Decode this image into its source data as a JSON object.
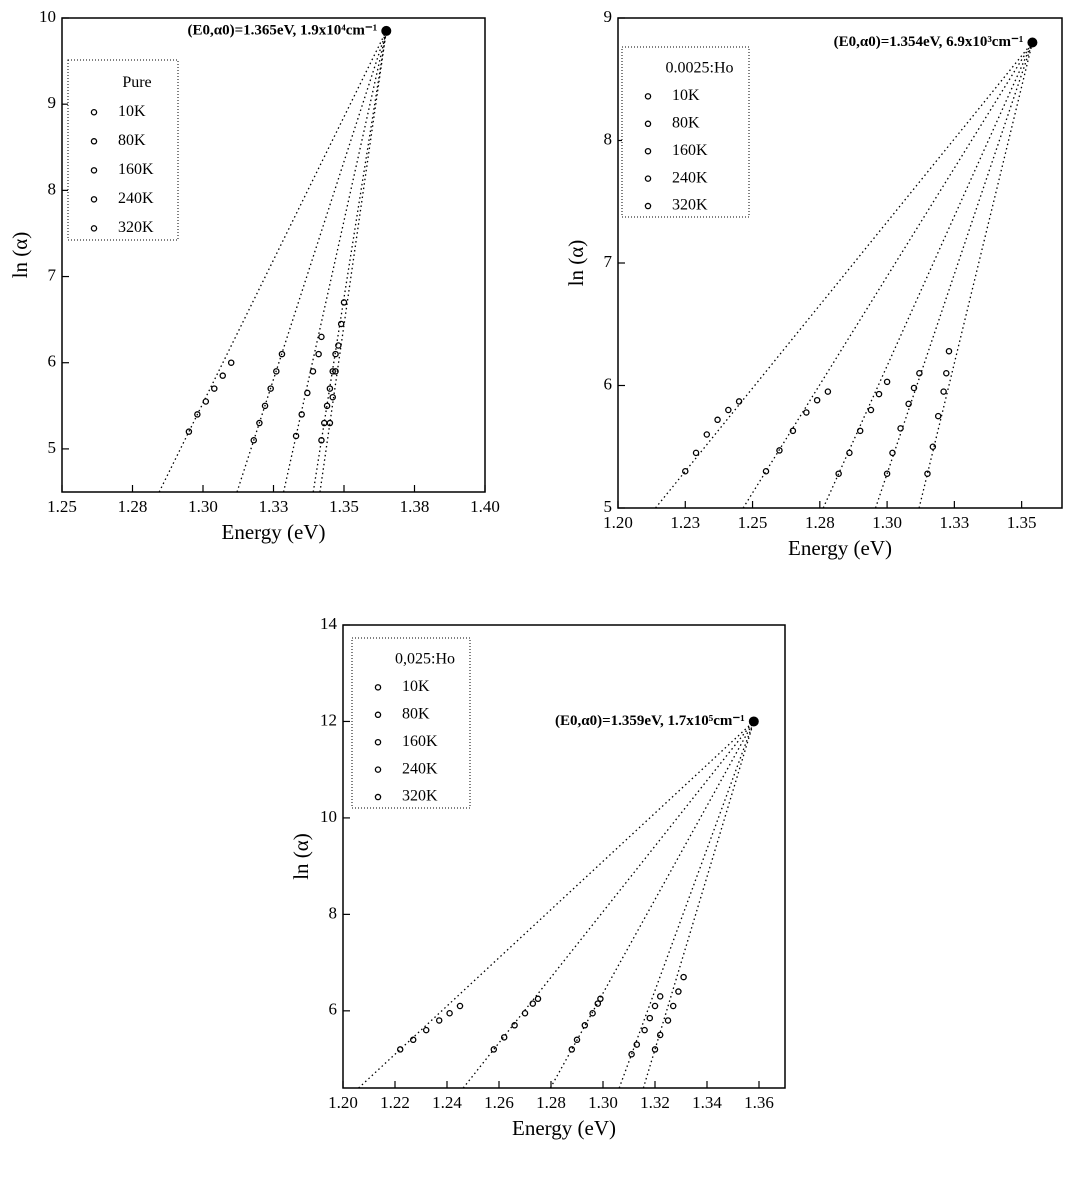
{
  "chart_data": [
    {
      "type": "scatter",
      "xlabel": "Energy (eV)",
      "ylabel": "ln (α)",
      "legend_title": "Pure",
      "legend": "upper left",
      "annotation": {
        "text": "(E0,α0)=1.365eV, 1.9x10⁴cm⁻¹",
        "x": 1.365,
        "y": 9.85
      },
      "xlim": [
        1.25,
        1.4
      ],
      "xticks": [
        1.25,
        {
          "value": 1.275,
          "label": "1.28"
        },
        {
          "value": 1.3,
          "label": "1.30"
        },
        {
          "value": 1.325,
          "label": "1.33"
        },
        1.35,
        {
          "value": 1.375,
          "label": "1.38"
        },
        {
          "value": 1.4,
          "label": "1.40"
        }
      ],
      "ylim": [
        4.5,
        10
      ],
      "yticks": [
        5,
        6,
        7,
        8,
        9,
        10
      ],
      "series": [
        {
          "name": "10K",
          "color": "#000000",
          "x": [
            1.295,
            1.298,
            1.301,
            1.304,
            1.307,
            1.31
          ],
          "values": [
            5.2,
            5.4,
            5.55,
            5.7,
            5.85,
            6.0
          ]
        },
        {
          "name": "80K",
          "color": "#000000",
          "x": [
            1.318,
            1.32,
            1.322,
            1.324,
            1.326,
            1.328
          ],
          "values": [
            5.1,
            5.3,
            5.5,
            5.7,
            5.9,
            6.1
          ]
        },
        {
          "name": "160K",
          "color": "#000000",
          "x": [
            1.333,
            1.335,
            1.337,
            1.339,
            1.341,
            1.342
          ],
          "values": [
            5.15,
            5.4,
            5.65,
            5.9,
            6.1,
            6.3
          ]
        },
        {
          "name": "240K",
          "color": "#000000",
          "x": [
            1.342,
            1.343,
            1.344,
            1.345,
            1.346,
            1.347
          ],
          "values": [
            5.1,
            5.3,
            5.5,
            5.7,
            5.9,
            6.1
          ]
        },
        {
          "name": "320K",
          "color": "#000000",
          "x": [
            1.345,
            1.346,
            1.347,
            1.348,
            1.349,
            1.35
          ],
          "values": [
            5.3,
            5.6,
            5.9,
            6.2,
            6.45,
            6.7
          ]
        }
      ]
    },
    {
      "type": "scatter",
      "xlabel": "Energy (eV)",
      "ylabel": "ln (α)",
      "legend_title": "0.0025:Ho",
      "legend": "upper left",
      "annotation": {
        "text": "(E0,α0)=1.354eV, 6.9x10³cm⁻¹",
        "x": 1.354,
        "y": 8.8
      },
      "xlim": [
        1.2,
        1.365
      ],
      "xticks": [
        {
          "value": 1.2,
          "label": "1.20"
        },
        {
          "value": 1.225,
          "label": "1.23"
        },
        1.25,
        {
          "value": 1.275,
          "label": "1.28"
        },
        {
          "value": 1.3,
          "label": "1.30"
        },
        {
          "value": 1.325,
          "label": "1.33"
        },
        1.35
      ],
      "ylim": [
        5,
        9
      ],
      "yticks": [
        5,
        6,
        7,
        8,
        9
      ],
      "series": [
        {
          "name": "10K",
          "color": "#000000",
          "x": [
            1.225,
            1.229,
            1.233,
            1.237,
            1.241,
            1.245
          ],
          "values": [
            5.3,
            5.45,
            5.6,
            5.72,
            5.8,
            5.87
          ]
        },
        {
          "name": "80K",
          "color": "#000000",
          "x": [
            1.255,
            1.26,
            1.265,
            1.27,
            1.274,
            1.278
          ],
          "values": [
            5.3,
            5.47,
            5.63,
            5.78,
            5.88,
            5.95
          ]
        },
        {
          "name": "160K",
          "color": "#000000",
          "x": [
            1.282,
            1.286,
            1.29,
            1.294,
            1.297,
            1.3
          ],
          "values": [
            5.28,
            5.45,
            5.63,
            5.8,
            5.93,
            6.03
          ]
        },
        {
          "name": "240K",
          "color": "#000000",
          "x": [
            1.3,
            1.302,
            1.305,
            1.308,
            1.31,
            1.312
          ],
          "values": [
            5.28,
            5.45,
            5.65,
            5.85,
            5.98,
            6.1
          ]
        },
        {
          "name": "320K",
          "color": "#000000",
          "x": [
            1.315,
            1.317,
            1.319,
            1.321,
            1.322,
            1.323
          ],
          "values": [
            5.28,
            5.5,
            5.75,
            5.95,
            6.1,
            6.28
          ]
        }
      ]
    },
    {
      "type": "scatter",
      "xlabel": "Energy (eV)",
      "ylabel": "ln (α)",
      "legend_title": "0,025:Ho",
      "legend": "upper left",
      "annotation": {
        "text": "(E0,α0)=1.359eV, 1.7x10⁵cm⁻¹",
        "x": 1.358,
        "y": 12.0
      },
      "xlim": [
        1.2,
        1.37
      ],
      "xticks": [
        {
          "value": 1.2,
          "label": "1.20"
        },
        1.22,
        1.24,
        1.26,
        1.28,
        {
          "value": 1.3,
          "label": "1.30"
        },
        1.32,
        1.34,
        1.36
      ],
      "ylim": [
        4.4,
        14
      ],
      "yticks": [
        6,
        8,
        10,
        12,
        14
      ],
      "series": [
        {
          "name": "10K",
          "color": "#000000",
          "x": [
            1.222,
            1.227,
            1.232,
            1.237,
            1.241,
            1.245
          ],
          "values": [
            5.2,
            5.4,
            5.6,
            5.8,
            5.95,
            6.1
          ]
        },
        {
          "name": "80K",
          "color": "#000000",
          "x": [
            1.258,
            1.262,
            1.266,
            1.27,
            1.273,
            1.275
          ],
          "values": [
            5.2,
            5.45,
            5.7,
            5.95,
            6.15,
            6.25
          ]
        },
        {
          "name": "160K",
          "color": "#000000",
          "x": [
            1.288,
            1.29,
            1.293,
            1.296,
            1.298,
            1.299
          ],
          "values": [
            5.2,
            5.4,
            5.7,
            5.95,
            6.15,
            6.25
          ]
        },
        {
          "name": "240K",
          "color": "#000000",
          "x": [
            1.311,
            1.313,
            1.316,
            1.318,
            1.32,
            1.322
          ],
          "values": [
            5.1,
            5.3,
            5.6,
            5.85,
            6.1,
            6.3
          ]
        },
        {
          "name": "320K",
          "color": "#000000",
          "x": [
            1.32,
            1.322,
            1.325,
            1.327,
            1.329,
            1.331
          ],
          "values": [
            5.2,
            5.5,
            5.8,
            6.1,
            6.4,
            6.7
          ]
        }
      ]
    }
  ]
}
